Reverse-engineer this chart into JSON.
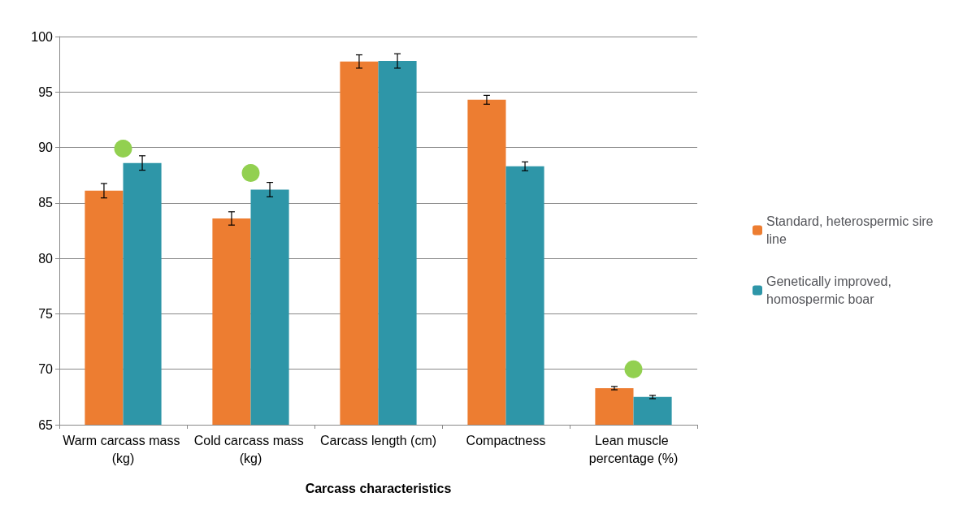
{
  "chart_data": {
    "type": "bar",
    "xlabel": "Carcass characteristics",
    "categories": [
      "Warm carcass mass (kg)",
      "Cold carcass mass (kg)",
      "Carcass length (cm)",
      "Compactness",
      "Lean muscle percentage (%)"
    ],
    "series": [
      {
        "name": "Standard, heterospermic sire line",
        "color": "#ed7d31",
        "values": [
          86.1,
          83.6,
          97.75,
          94.3,
          68.3
        ],
        "errors": [
          0.65,
          0.6,
          0.6,
          0.4,
          0.15
        ]
      },
      {
        "name": "Genetically improved, homospermic boar",
        "color": "#2e96a8",
        "values": [
          88.6,
          86.2,
          97.8,
          88.3,
          67.5
        ],
        "errors": [
          0.65,
          0.65,
          0.65,
          0.4,
          0.15
        ]
      },
      {
        "type": "scatter",
        "color": "#92d050",
        "x": [
          "Warm carcass mass (kg)",
          "Cold carcass mass (kg)",
          "Lean muscle percentage (%)"
        ],
        "values": [
          89.9,
          87.7,
          70
        ],
        "marker": "circle"
      }
    ],
    "ylim": [
      65,
      100
    ],
    "yticks": [
      65,
      70,
      75,
      80,
      85,
      90,
      95,
      100
    ],
    "grid": "y",
    "legend": "right"
  }
}
